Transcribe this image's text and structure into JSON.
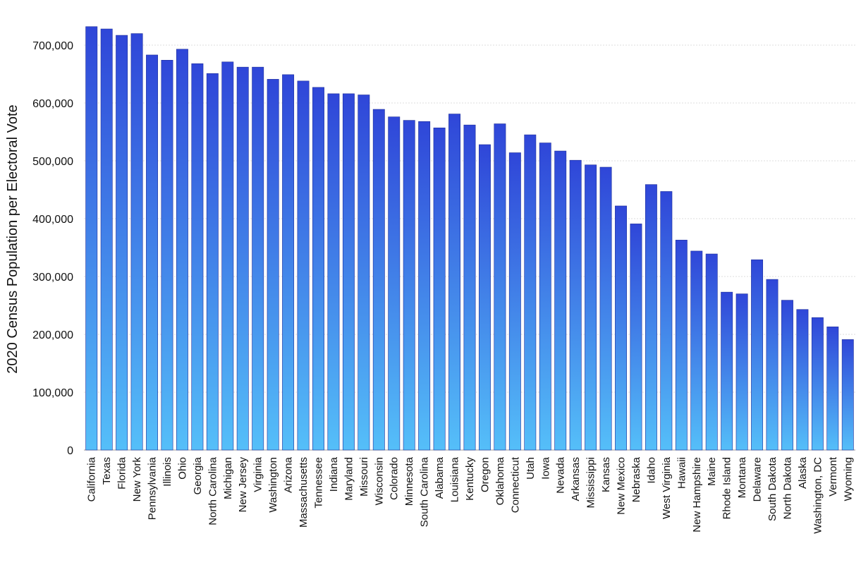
{
  "chart_data": {
    "type": "bar",
    "title": "",
    "xlabel": "",
    "ylabel": "2020 Census Population per Electoral Vote",
    "ylim": [
      0,
      700000
    ],
    "yticks": [
      0,
      100000,
      200000,
      300000,
      400000,
      500000,
      600000,
      700000
    ],
    "ytick_labels": [
      "0",
      "100,000",
      "200,000",
      "300,000",
      "400,000",
      "500,000",
      "600,000",
      "700,000"
    ],
    "grid": true,
    "legend": "none",
    "colors": {
      "bar_top": "#2f46d8",
      "bar_bottom": "#55bff9",
      "bar_edge": "#1f2f9a"
    },
    "categories": [
      "California",
      "Texas",
      "Florida",
      "New York",
      "Pennsylvania",
      "Illinois",
      "Ohio",
      "Georgia",
      "North Carolina",
      "Michigan",
      "New Jersey",
      "Virginia",
      "Washington",
      "Arizona",
      "Massachusetts",
      "Tennessee",
      "Indiana",
      "Maryland",
      "Missouri",
      "Wisconsin",
      "Colorado",
      "Minnesota",
      "South Carolina",
      "Alabama",
      "Louisiana",
      "Kentucky",
      "Oregon",
      "Oklahoma",
      "Connecticut",
      "Utah",
      "Iowa",
      "Nevada",
      "Arkansas",
      "Mississippi",
      "Kansas",
      "New Mexico",
      "Nebraska",
      "Idaho",
      "West Virginia",
      "Hawaii",
      "New Hampshire",
      "Maine",
      "Rhode Island",
      "Montana",
      "Delaware",
      "South Dakota",
      "North Dakota",
      "Alaska",
      "Washington, DC",
      "Vermont",
      "Wyoming"
    ],
    "values": [
      732000,
      728000,
      717000,
      720000,
      683000,
      674000,
      693000,
      668000,
      651000,
      671000,
      662000,
      662000,
      641000,
      649000,
      638000,
      627000,
      616000,
      616000,
      614000,
      589000,
      576000,
      570000,
      568000,
      557000,
      581000,
      562000,
      528000,
      564000,
      514000,
      545000,
      531000,
      517000,
      501000,
      493000,
      489000,
      422000,
      391000,
      459000,
      447000,
      363000,
      344000,
      339000,
      273000,
      270000,
      329000,
      295000,
      259000,
      243000,
      229000,
      213000,
      191000
    ]
  }
}
